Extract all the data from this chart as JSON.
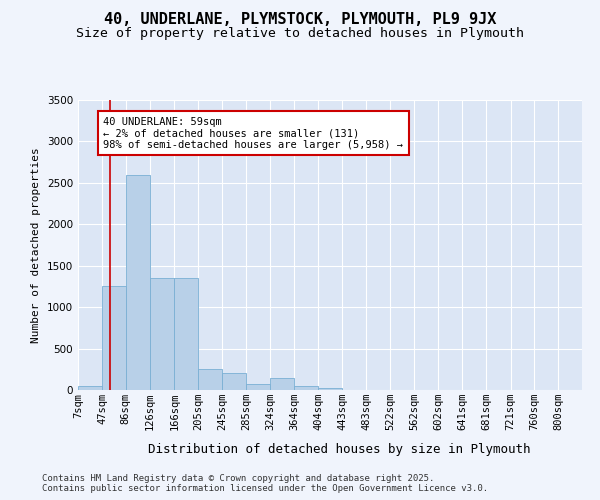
{
  "title_line1": "40, UNDERLANE, PLYMSTOCK, PLYMOUTH, PL9 9JX",
  "title_line2": "Size of property relative to detached houses in Plymouth",
  "xlabel": "Distribution of detached houses by size in Plymouth",
  "ylabel": "Number of detached properties",
  "bar_color": "#b8d0e8",
  "bar_edge_color": "#7aafd4",
  "bg_color": "#dce6f5",
  "grid_color": "#ffffff",
  "annotation_box_color": "#cc0000",
  "vline_color": "#cc0000",
  "fig_bg_color": "#f0f4fc",
  "bins": [
    "7sqm",
    "47sqm",
    "86sqm",
    "126sqm",
    "166sqm",
    "205sqm",
    "245sqm",
    "285sqm",
    "324sqm",
    "364sqm",
    "404sqm",
    "443sqm",
    "483sqm",
    "522sqm",
    "562sqm",
    "602sqm",
    "641sqm",
    "681sqm",
    "721sqm",
    "760sqm",
    "800sqm"
  ],
  "bin_edges": [
    7,
    47,
    86,
    126,
    166,
    205,
    245,
    285,
    324,
    364,
    404,
    443,
    483,
    522,
    562,
    602,
    641,
    681,
    721,
    760,
    800
  ],
  "values": [
    50,
    1250,
    2600,
    1350,
    1350,
    250,
    200,
    75,
    150,
    50,
    30,
    5,
    2,
    1,
    1,
    0,
    0,
    0,
    0,
    0
  ],
  "vline_x": 59,
  "ylim": [
    0,
    3500
  ],
  "yticks": [
    0,
    500,
    1000,
    1500,
    2000,
    2500,
    3000,
    3500
  ],
  "annotation_text": "40 UNDERLANE: 59sqm\n← 2% of detached houses are smaller (131)\n98% of semi-detached houses are larger (5,958) →",
  "footnote1": "Contains HM Land Registry data © Crown copyright and database right 2025.",
  "footnote2": "Contains public sector information licensed under the Open Government Licence v3.0.",
  "title_fontsize": 11,
  "subtitle_fontsize": 9.5,
  "ylabel_fontsize": 8,
  "xlabel_fontsize": 9,
  "tick_fontsize": 7.5,
  "annot_fontsize": 7.5,
  "footnote_fontsize": 6.5
}
